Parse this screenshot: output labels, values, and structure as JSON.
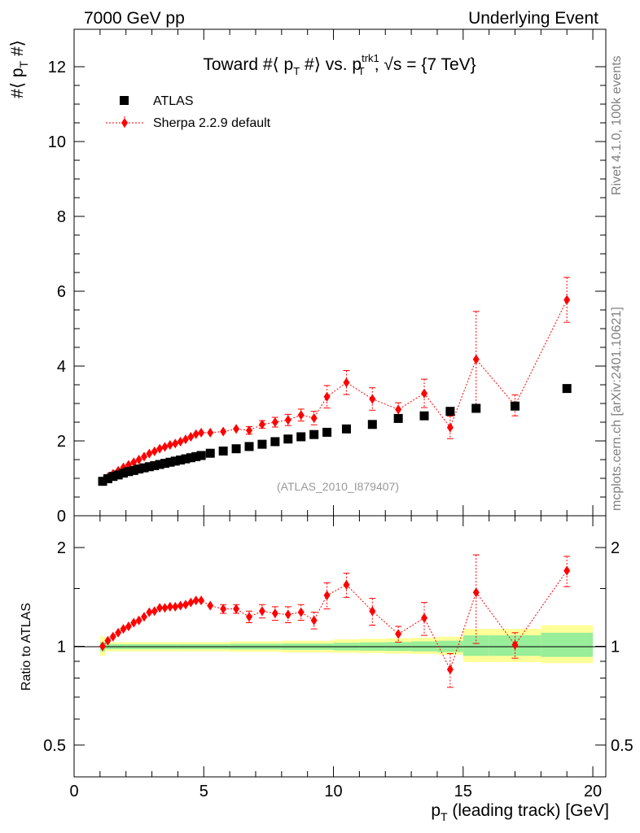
{
  "header": {
    "left": "7000 GeV pp",
    "right": "Underlying Event"
  },
  "side_labels": {
    "rivet": "Rivet 4.1.0,  100k events",
    "mcplots": "mcplots.cern.ch [arXiv:2401.10621]"
  },
  "watermark": "(ATLAS_2010_I879407)",
  "chart_data": [
    {
      "type": "scatter",
      "title": "Toward #⟨ p_T #⟩ vs. p_T^trk1, √s = {7 TeV}",
      "title_parts": {
        "a": "Toward #⟨ p",
        "b": "T",
        "c": " #⟩ vs. p",
        "d": "trk1",
        "e": "T",
        "f": ", √s = {7 TeV}"
      },
      "ylabel_parts": {
        "a": "#⟨ p",
        "b": "T",
        "c": " #⟩"
      },
      "xlim": [
        0,
        20
      ],
      "ylim": [
        0,
        13
      ],
      "yticks": [
        0,
        2,
        4,
        6,
        8,
        10,
        12
      ],
      "ytick_labels": [
        "0",
        "2",
        "4",
        "6",
        "8",
        "10",
        "12"
      ],
      "legend": {
        "position": "top-left",
        "entries": [
          {
            "label": "ATLAS",
            "color": "#000000",
            "marker": "square"
          },
          {
            "label": "Sherpa 2.2.9 default",
            "color": "#ff0000",
            "marker": "diamond",
            "line": "dotted"
          }
        ]
      },
      "series": [
        {
          "name": "ATLAS",
          "color": "#000000",
          "x": [
            1.1,
            1.3,
            1.5,
            1.7,
            1.9,
            2.1,
            2.3,
            2.5,
            2.7,
            2.9,
            3.1,
            3.3,
            3.5,
            3.7,
            3.9,
            4.1,
            4.3,
            4.5,
            4.7,
            4.9,
            5.25,
            5.75,
            6.25,
            6.75,
            7.25,
            7.75,
            8.25,
            8.75,
            9.25,
            9.75,
            10.5,
            11.5,
            12.5,
            13.5,
            14.5,
            15.5,
            17,
            19
          ],
          "y": [
            0.92,
            0.99,
            1.05,
            1.09,
            1.14,
            1.18,
            1.21,
            1.25,
            1.28,
            1.31,
            1.34,
            1.37,
            1.4,
            1.43,
            1.46,
            1.49,
            1.52,
            1.55,
            1.58,
            1.61,
            1.67,
            1.73,
            1.79,
            1.85,
            1.91,
            1.98,
            2.05,
            2.11,
            2.17,
            2.23,
            2.32,
            2.44,
            2.6,
            2.67,
            2.79,
            2.87,
            2.93,
            3.4
          ]
        },
        {
          "name": "Sherpa 2.2.9 default",
          "color": "#ff0000",
          "x": [
            1.1,
            1.3,
            1.5,
            1.7,
            1.9,
            2.1,
            2.3,
            2.5,
            2.7,
            2.9,
            3.1,
            3.3,
            3.5,
            3.7,
            3.9,
            4.1,
            4.3,
            4.5,
            4.7,
            4.9,
            5.25,
            5.75,
            6.25,
            6.75,
            7.25,
            7.75,
            8.25,
            8.75,
            9.25,
            9.75,
            10.5,
            11.5,
            12.5,
            13.5,
            14.5,
            15.5,
            17,
            19
          ],
          "y": [
            0.92,
            1.03,
            1.12,
            1.2,
            1.29,
            1.36,
            1.43,
            1.5,
            1.58,
            1.66,
            1.72,
            1.79,
            1.84,
            1.89,
            1.93,
            1.98,
            2.04,
            2.11,
            2.18,
            2.22,
            2.22,
            2.25,
            2.32,
            2.28,
            2.44,
            2.5,
            2.56,
            2.69,
            2.61,
            3.18,
            3.56,
            3.12,
            2.84,
            3.27,
            2.36,
            4.18,
            2.95,
            5.77
          ],
          "err": [
            0.02,
            0.02,
            0.02,
            0.02,
            0.02,
            0.02,
            0.03,
            0.03,
            0.03,
            0.03,
            0.03,
            0.03,
            0.04,
            0.04,
            0.04,
            0.04,
            0.05,
            0.05,
            0.06,
            0.06,
            0.06,
            0.08,
            0.08,
            0.1,
            0.1,
            0.13,
            0.15,
            0.16,
            0.18,
            0.3,
            0.32,
            0.3,
            0.18,
            0.38,
            0.3,
            1.28,
            0.28,
            0.6
          ]
        }
      ]
    },
    {
      "type": "scatter",
      "ylabel": "Ratio to ATLAS",
      "xlabel": "p_T (leading track) [GeV]",
      "xlabel_parts": {
        "a": "p",
        "b": "T",
        "c": " (leading track) [GeV]"
      },
      "xlim": [
        0,
        20.5
      ],
      "xticks": [
        0,
        5,
        10,
        15,
        20
      ],
      "xtick_labels": [
        "0",
        "5",
        "10",
        "15",
        "20"
      ],
      "ylim": [
        0.4,
        2.5
      ],
      "ylog": true,
      "yticks": [
        0.5,
        1,
        2
      ],
      "ytick_labels": [
        "0.5",
        "1",
        "2"
      ],
      "bands": {
        "x_edges": [
          1.0,
          1.2,
          2.0,
          4.0,
          6.0,
          8.0,
          10.0,
          11.0,
          12.0,
          13.0,
          14.0,
          15.0,
          16.0,
          18.0,
          20.0
        ],
        "stat_sys_lo": [
          0.935,
          0.965,
          0.965,
          0.965,
          0.962,
          0.958,
          0.955,
          0.953,
          0.95,
          0.948,
          0.943,
          0.895,
          0.895,
          0.888
        ],
        "stat_sys_hi": [
          1.07,
          1.03,
          1.03,
          1.03,
          1.035,
          1.04,
          1.05,
          1.055,
          1.058,
          1.062,
          1.07,
          1.13,
          1.13,
          1.16
        ],
        "stat_lo": [
          0.965,
          0.98,
          0.98,
          0.98,
          0.978,
          0.976,
          0.972,
          0.97,
          0.968,
          0.965,
          0.96,
          0.935,
          0.935,
          0.928
        ],
        "stat_hi": [
          1.03,
          1.015,
          1.015,
          1.015,
          1.018,
          1.02,
          1.025,
          1.028,
          1.03,
          1.035,
          1.04,
          1.08,
          1.08,
          1.1
        ],
        "stat_sys_color": "#ffff99",
        "stat_color": "#99ee99"
      },
      "series": [
        {
          "name": "Sherpa 2.2.9 default / ATLAS",
          "color": "#ff0000",
          "x": [
            1.1,
            1.3,
            1.5,
            1.7,
            1.9,
            2.1,
            2.3,
            2.5,
            2.7,
            2.9,
            3.1,
            3.3,
            3.5,
            3.7,
            3.9,
            4.1,
            4.3,
            4.5,
            4.7,
            4.9,
            5.25,
            5.75,
            6.25,
            6.75,
            7.25,
            7.75,
            8.25,
            8.75,
            9.25,
            9.75,
            10.5,
            11.5,
            12.5,
            13.5,
            14.5,
            15.5,
            17,
            19
          ],
          "y": [
            1.0,
            1.04,
            1.07,
            1.1,
            1.13,
            1.15,
            1.18,
            1.2,
            1.23,
            1.27,
            1.28,
            1.31,
            1.31,
            1.32,
            1.32,
            1.33,
            1.34,
            1.36,
            1.38,
            1.38,
            1.33,
            1.3,
            1.3,
            1.23,
            1.28,
            1.26,
            1.25,
            1.27,
            1.2,
            1.43,
            1.54,
            1.28,
            1.09,
            1.22,
            0.85,
            1.46,
            1.01,
            1.7
          ],
          "err": [
            0.02,
            0.02,
            0.02,
            0.02,
            0.02,
            0.02,
            0.02,
            0.02,
            0.02,
            0.02,
            0.02,
            0.02,
            0.02,
            0.03,
            0.03,
            0.03,
            0.03,
            0.03,
            0.03,
            0.03,
            0.03,
            0.04,
            0.04,
            0.05,
            0.06,
            0.06,
            0.07,
            0.07,
            0.07,
            0.13,
            0.13,
            0.12,
            0.06,
            0.14,
            0.1,
            0.44,
            0.09,
            0.18
          ]
        }
      ]
    }
  ]
}
